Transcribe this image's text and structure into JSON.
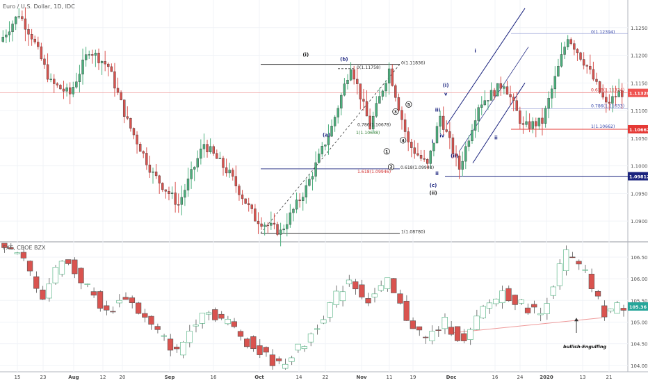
{
  "chart_data": [
    {
      "type": "candlestick",
      "title": "Euro / U.S. Dollar, 1D, IDC",
      "y_ticks": [
        1.125,
        1.12,
        1.115,
        1.11,
        1.105,
        1.1,
        1.095,
        1.09
      ],
      "ylim": [
        1.0865,
        1.1295
      ],
      "price_markers": [
        {
          "value": 1.1132,
          "label": "1.11320",
          "color": "#ef5350"
        },
        {
          "value": 1.10662,
          "label": "1.10662",
          "color": "#e53935"
        },
        {
          "value": 1.09812,
          "label": "1.09812",
          "color": "#1a237e"
        }
      ],
      "fib_levels": [
        {
          "text": "0(1.11836)",
          "value": 1.11836,
          "color": "#333333"
        },
        {
          "text": "0(1.11758)",
          "value": 1.11758,
          "color": "#333333"
        },
        {
          "text": "0.786(1.10678)",
          "value": 1.10678,
          "color": "#333333"
        },
        {
          "text": "1(1.10638)",
          "value": 1.10638,
          "color": "#2e7d32"
        },
        {
          "text": "1.618(1.09946)",
          "value": 1.09946,
          "color": "#d32f2f"
        },
        {
          "text": "0.618(1.09948)",
          "value": 1.09948,
          "color": "#333333"
        },
        {
          "text": "1(1.08780)",
          "value": 1.0878,
          "color": "#333333"
        },
        {
          "text": "0(1.12394)",
          "value": 1.12394,
          "color": "#3949ab"
        },
        {
          "text": "0.618(1.11324)",
          "value": 1.11324,
          "color": "#d32f2f"
        },
        {
          "text": "0.786(1.11033)",
          "value": 1.11033,
          "color": "#3949ab"
        },
        {
          "text": "1(1.10662)",
          "value": 1.10662,
          "color": "#3949ab"
        }
      ],
      "wave_labels": [
        {
          "text": "(i)",
          "t": 0.487,
          "v": 1.1198,
          "color": "#1b1b1b"
        },
        {
          "text": "(b)",
          "t": 0.548,
          "v": 1.119,
          "color": "#1a237e"
        },
        {
          "text": "(a)",
          "t": 0.52,
          "v": 1.1053,
          "color": "#1a237e"
        },
        {
          "text": "(c)",
          "t": 0.69,
          "v": 1.0962,
          "color": "#1a237e"
        },
        {
          "text": "(ii)",
          "t": 0.69,
          "v": 1.0948,
          "color": "#1b1b1b"
        },
        {
          "text": "(i)",
          "t": 0.71,
          "v": 1.1143,
          "color": "#1a237e"
        },
        {
          "text": "(ii)",
          "t": 0.724,
          "v": 1.1015,
          "color": "#1a237e"
        },
        {
          "text": "i",
          "t": 0.757,
          "v": 1.1205,
          "color": "#1a237e"
        },
        {
          "text": "ii",
          "t": 0.79,
          "v": 1.1048,
          "color": "#1a237e"
        },
        {
          "text": "v",
          "t": 0.71,
          "v": 1.1127,
          "color": "#1a237e"
        },
        {
          "text": "iii",
          "t": 0.697,
          "v": 1.1098,
          "color": "#1a237e"
        },
        {
          "text": "iv",
          "t": 0.704,
          "v": 1.1052,
          "color": "#1a237e"
        },
        {
          "text": "i",
          "t": 0.689,
          "v": 1.1041,
          "color": "#1a237e"
        },
        {
          "text": "ii",
          "t": 0.696,
          "v": 1.0983,
          "color": "#1a237e"
        },
        {
          "text": "1",
          "t": 0.616,
          "v": 1.1023,
          "color": "#1b1b1b",
          "circled": true
        },
        {
          "text": "2",
          "t": 0.623,
          "v": 1.0995,
          "color": "#1b1b1b",
          "circled": true
        },
        {
          "text": "3",
          "t": 0.63,
          "v": 1.1095,
          "color": "#1b1b1b",
          "circled": true
        },
        {
          "text": "4",
          "t": 0.642,
          "v": 1.1043,
          "color": "#1b1b1b",
          "circled": true
        },
        {
          "text": "5",
          "t": 0.651,
          "v": 1.1108,
          "color": "#1b1b1b",
          "circled": true
        }
      ]
    },
    {
      "type": "candlestick",
      "title": "FXE, CBOE BZX",
      "y_ticks": [
        106.5,
        106.0,
        105.5,
        105.0,
        104.5,
        104.0
      ],
      "y_tick_labels": [
        "106.50",
        "106.00",
        "105.50",
        "105.00",
        "104.50",
        "104.00"
      ],
      "ylim": [
        103.9,
        106.82
      ],
      "price_markers": [
        {
          "value": 105.36,
          "label": "105.36",
          "color": "#26a69a"
        }
      ],
      "annotation": "bullish-Engulfing"
    }
  ],
  "x_axis": {
    "labels": [
      "15",
      "23",
      "Aug",
      "12",
      "20",
      "Sep",
      "16",
      "Oct",
      "14",
      "22",
      "Nov",
      "11",
      "19",
      "Dec",
      "16",
      "24",
      "2020",
      "13",
      "21"
    ],
    "bold": [
      "Aug",
      "Sep",
      "Oct",
      "Nov",
      "Dec",
      "2020"
    ]
  },
  "colors": {
    "up": "#4caf7d",
    "down": "#d9534f",
    "grid": "#f0f3f7",
    "drawing": "#1a237e",
    "hline": "#333333",
    "support": "#ef9a9a"
  }
}
